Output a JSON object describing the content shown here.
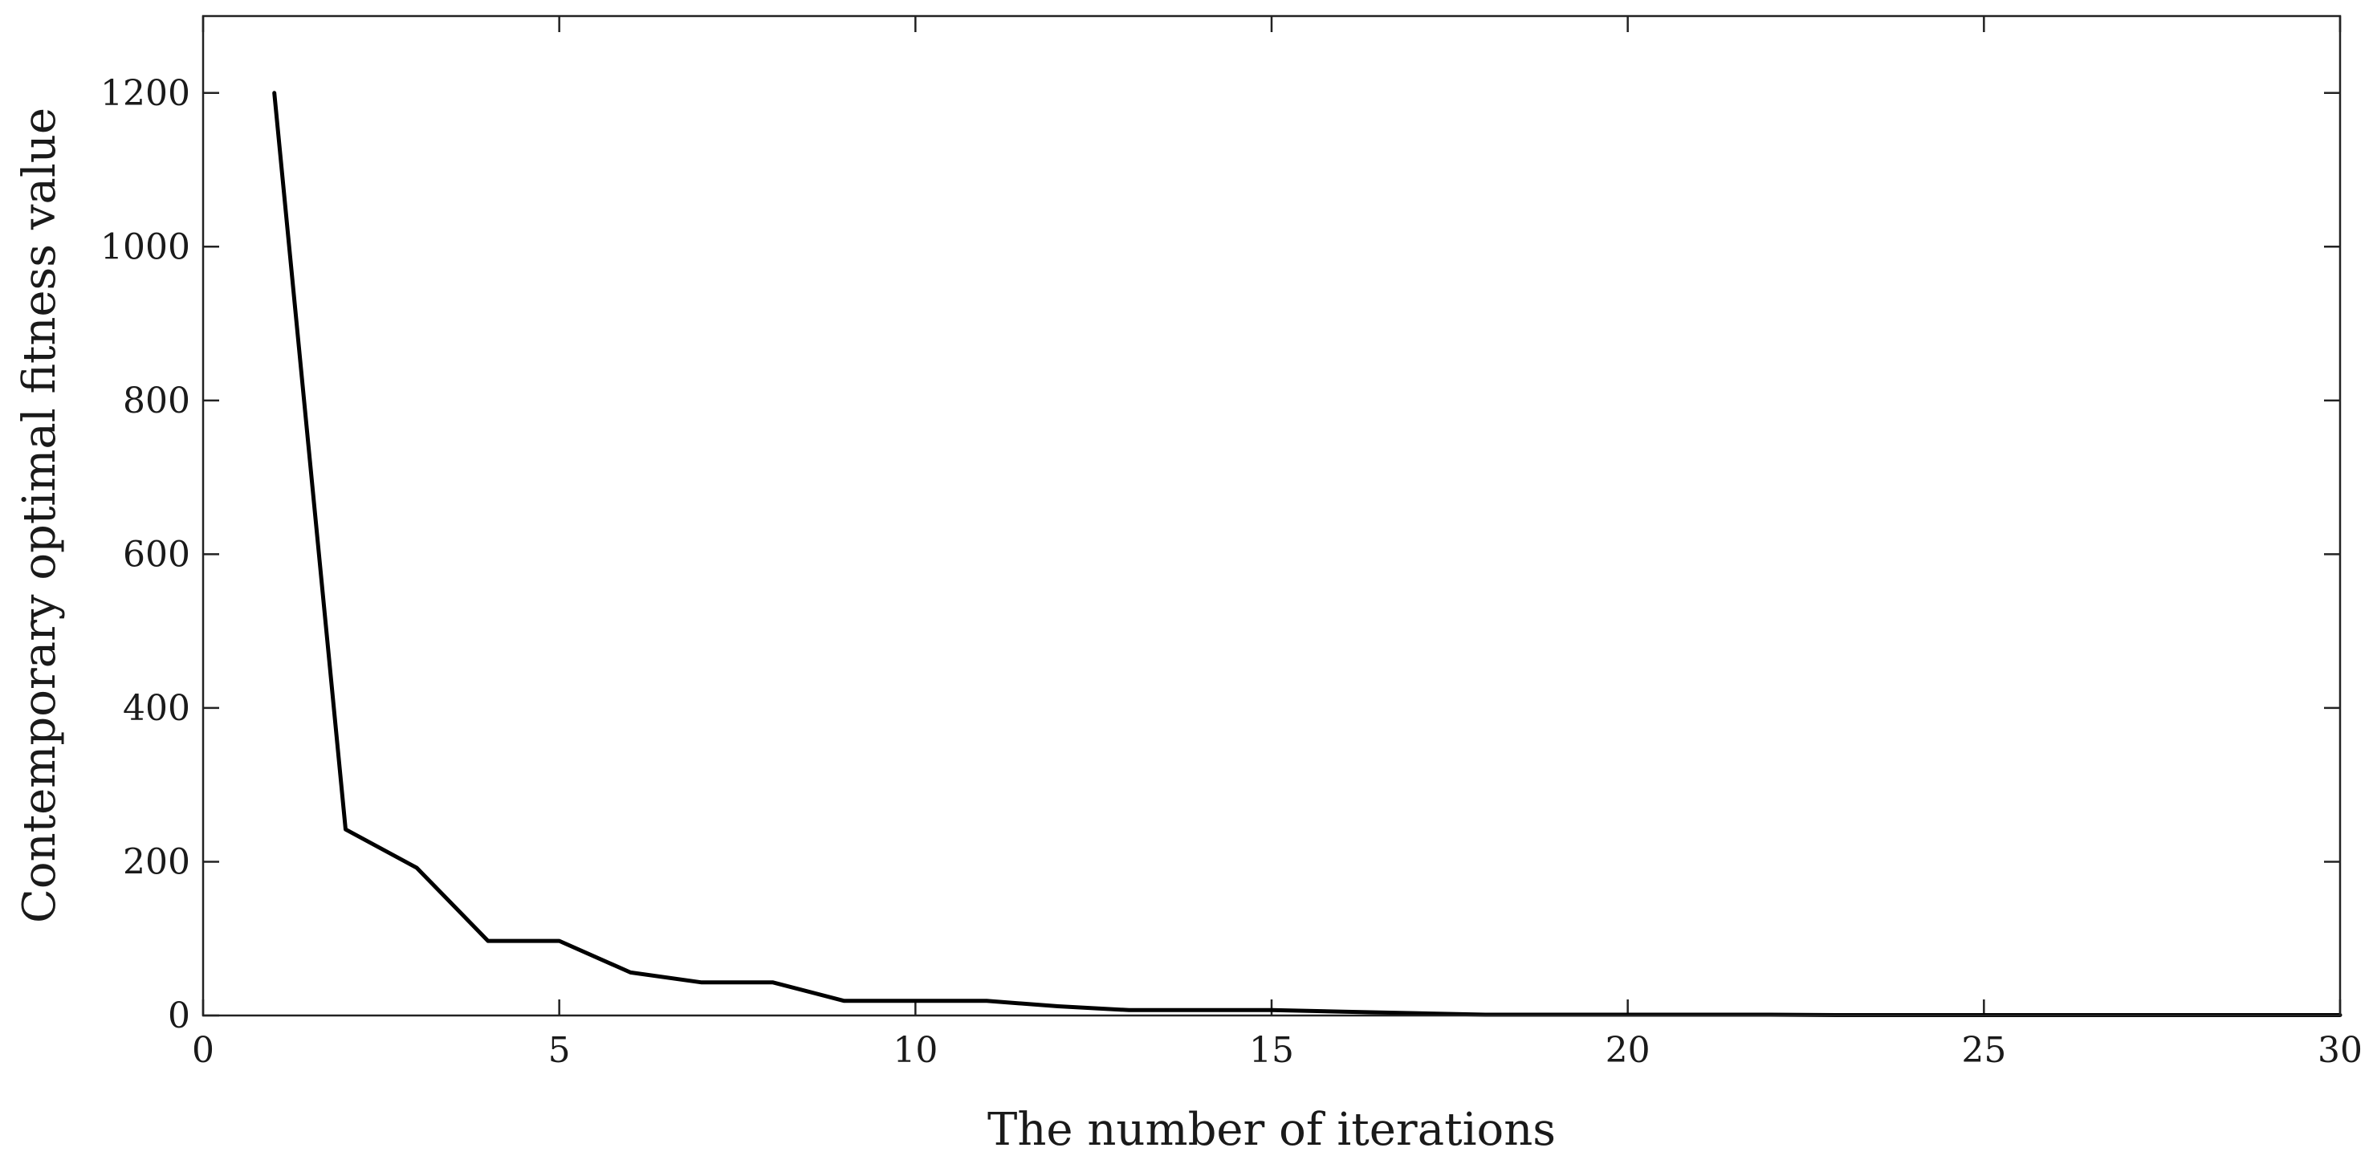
{
  "chart_data": {
    "type": "line",
    "title": "",
    "xlabel": "The number of iterations",
    "ylabel": "Contemporary optimal fitness value",
    "xlim": [
      0,
      30
    ],
    "ylim": [
      0,
      1300
    ],
    "xticks": [
      0,
      5,
      10,
      15,
      20,
      25,
      30
    ],
    "yticks": [
      0,
      200,
      400,
      600,
      800,
      1000,
      1200
    ],
    "xtick_labels": [
      "0",
      "5",
      "10",
      "15",
      "20",
      "25",
      "30"
    ],
    "ytick_labels": [
      "0",
      "200",
      "400",
      "600",
      "800",
      "1000",
      "1200"
    ],
    "grid": false,
    "legend": "none",
    "series": [
      {
        "color": "#000000",
        "x": [
          1,
          2,
          3,
          4,
          5,
          6,
          7,
          8,
          9,
          10,
          11,
          12,
          13,
          14,
          15,
          16,
          17,
          18,
          19,
          20,
          21,
          22,
          23,
          24,
          25,
          26,
          27,
          28,
          29,
          30
        ],
        "y": [
          1200,
          242,
          192,
          97,
          97,
          56,
          43,
          43,
          19,
          19,
          19,
          12,
          7,
          7,
          7,
          5,
          3,
          1,
          1,
          1,
          1,
          1,
          0.5,
          0.5,
          0.5,
          0.5,
          0.5,
          0.5,
          0.5,
          0.5
        ]
      }
    ]
  }
}
